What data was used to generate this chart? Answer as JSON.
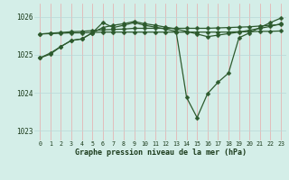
{
  "title": "Graphe pression niveau de la mer (hPa)",
  "bg_color": "#d4eee8",
  "grid_color_v": "#e8aaaa",
  "grid_color_h": "#b8d8d8",
  "line_color": "#2d5a2d",
  "marker": "D",
  "markersize": 2.5,
  "linewidth": 0.9,
  "xlim": [
    -0.5,
    23.5
  ],
  "ylim": [
    1022.75,
    1026.35
  ],
  "yticks": [
    1023,
    1024,
    1025,
    1026
  ],
  "xticks": [
    0,
    1,
    2,
    3,
    4,
    5,
    6,
    7,
    8,
    9,
    10,
    11,
    12,
    13,
    14,
    15,
    16,
    17,
    18,
    19,
    20,
    21,
    22,
    23
  ],
  "series": [
    [
      1024.92,
      1025.02,
      1025.22,
      1025.38,
      1025.42,
      1025.58,
      1025.72,
      1025.78,
      1025.82,
      1025.88,
      1025.82,
      1025.78,
      1025.73,
      1025.68,
      1025.62,
      1025.55,
      1025.48,
      1025.52,
      1025.56,
      1025.6,
      1025.65,
      1025.7,
      1025.75,
      1025.82
    ],
    [
      1025.55,
      1025.56,
      1025.57,
      1025.58,
      1025.58,
      1025.59,
      1025.6,
      1025.6,
      1025.6,
      1025.6,
      1025.6,
      1025.6,
      1025.6,
      1025.6,
      1025.6,
      1025.6,
      1025.6,
      1025.6,
      1025.6,
      1025.61,
      1025.61,
      1025.62,
      1025.62,
      1025.63
    ],
    [
      1025.55,
      1025.57,
      1025.59,
      1025.61,
      1025.62,
      1025.64,
      1025.66,
      1025.67,
      1025.68,
      1025.7,
      1025.7,
      1025.7,
      1025.7,
      1025.7,
      1025.7,
      1025.7,
      1025.7,
      1025.71,
      1025.72,
      1025.73,
      1025.74,
      1025.76,
      1025.78,
      1025.8
    ],
    [
      1024.92,
      1025.05,
      1025.22,
      1025.38,
      1025.42,
      1025.58,
      1025.85,
      1025.72,
      1025.78,
      1025.85,
      1025.78,
      1025.73,
      1025.68,
      1025.62,
      1023.88,
      1023.35,
      1023.98,
      1024.28,
      1024.52,
      1025.45,
      1025.58,
      1025.72,
      1025.85,
      1025.97
    ]
  ]
}
